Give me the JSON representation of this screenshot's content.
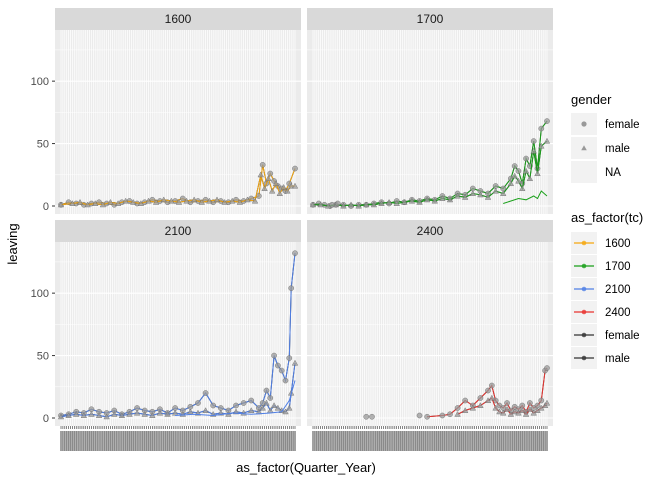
{
  "chart_data": {
    "type": "line",
    "facets": [
      "1600",
      "1700",
      "2100",
      "2400"
    ],
    "xlabel": "as_factor(Quarter_Year)",
    "ylabel": "leaving",
    "ylim": [
      0,
      140
    ],
    "yticks": [
      0,
      50,
      100
    ],
    "n_quarters": 124,
    "legend_gender": {
      "title": "gender",
      "entries": [
        {
          "label": "female",
          "shape": "circle"
        },
        {
          "label": "male",
          "shape": "triangle"
        },
        {
          "label": "NA",
          "shape": "none"
        }
      ]
    },
    "legend_tc": {
      "title": "as_factor(tc)",
      "entries": [
        {
          "label": "1600",
          "color": "#F5A70F"
        },
        {
          "label": "1700",
          "color": "#1AA01A"
        },
        {
          "label": "2100",
          "color": "#4F7FE6"
        },
        {
          "label": "2400",
          "color": "#E8332F"
        },
        {
          "label": "female",
          "color": "#333333"
        },
        {
          "label": "male",
          "color": "#333333"
        }
      ]
    },
    "series": [
      {
        "facet": "1600",
        "color": "#F5A70F",
        "gender": "female",
        "points": [
          [
            0,
            1
          ],
          [
            4,
            3
          ],
          [
            8,
            2
          ],
          [
            12,
            1
          ],
          [
            16,
            2
          ],
          [
            20,
            3
          ],
          [
            24,
            2
          ],
          [
            28,
            1
          ],
          [
            32,
            3
          ],
          [
            36,
            4
          ],
          [
            40,
            2
          ],
          [
            44,
            3
          ],
          [
            48,
            5
          ],
          [
            52,
            4
          ],
          [
            56,
            3
          ],
          [
            60,
            4
          ],
          [
            64,
            6
          ],
          [
            68,
            3
          ],
          [
            72,
            4
          ],
          [
            76,
            5
          ],
          [
            80,
            3
          ],
          [
            84,
            4
          ],
          [
            88,
            3
          ],
          [
            92,
            5
          ],
          [
            96,
            4
          ],
          [
            100,
            6
          ],
          [
            104,
            8
          ],
          [
            106,
            33
          ],
          [
            108,
            18
          ],
          [
            110,
            26
          ],
          [
            112,
            20
          ],
          [
            114,
            16
          ],
          [
            116,
            14
          ],
          [
            118,
            12
          ],
          [
            120,
            18
          ],
          [
            123,
            30
          ]
        ]
      },
      {
        "facet": "1600",
        "color": "#F5A70F",
        "gender": "male",
        "points": [
          [
            0,
            1
          ],
          [
            6,
            2
          ],
          [
            10,
            3
          ],
          [
            14,
            1
          ],
          [
            18,
            2
          ],
          [
            22,
            1
          ],
          [
            26,
            3
          ],
          [
            30,
            2
          ],
          [
            34,
            4
          ],
          [
            38,
            3
          ],
          [
            42,
            2
          ],
          [
            46,
            4
          ],
          [
            50,
            3
          ],
          [
            54,
            5
          ],
          [
            58,
            4
          ],
          [
            62,
            3
          ],
          [
            66,
            4
          ],
          [
            70,
            5
          ],
          [
            74,
            3
          ],
          [
            78,
            4
          ],
          [
            82,
            5
          ],
          [
            86,
            3
          ],
          [
            90,
            4
          ],
          [
            94,
            3
          ],
          [
            98,
            5
          ],
          [
            102,
            4
          ],
          [
            105,
            25
          ],
          [
            107,
            14
          ],
          [
            109,
            22
          ],
          [
            111,
            12
          ],
          [
            113,
            18
          ],
          [
            115,
            10
          ],
          [
            117,
            15
          ],
          [
            119,
            12
          ],
          [
            121,
            16
          ],
          [
            123,
            16
          ]
        ]
      },
      {
        "facet": "1700",
        "color": "#1AA01A",
        "gender": "female",
        "points": [
          [
            0,
            1
          ],
          [
            3,
            2
          ],
          [
            6,
            1
          ],
          [
            9,
            0
          ],
          [
            12,
            1
          ],
          [
            16,
            1
          ],
          [
            20,
            0
          ],
          [
            24,
            1
          ],
          [
            28,
            1
          ],
          [
            32,
            2
          ],
          [
            36,
            3
          ],
          [
            40,
            2
          ],
          [
            44,
            4
          ],
          [
            48,
            3
          ],
          [
            52,
            5
          ],
          [
            56,
            4
          ],
          [
            60,
            6
          ],
          [
            64,
            5
          ],
          [
            68,
            8
          ],
          [
            72,
            6
          ],
          [
            76,
            10
          ],
          [
            80,
            9
          ],
          [
            84,
            14
          ],
          [
            88,
            12
          ],
          [
            92,
            10
          ],
          [
            96,
            16
          ],
          [
            100,
            14
          ],
          [
            104,
            22
          ],
          [
            106,
            32
          ],
          [
            108,
            28
          ],
          [
            110,
            18
          ],
          [
            112,
            38
          ],
          [
            114,
            32
          ],
          [
            116,
            52
          ],
          [
            118,
            30
          ],
          [
            120,
            62
          ],
          [
            123,
            68
          ]
        ]
      },
      {
        "facet": "1700",
        "color": "#1AA01A",
        "gender": "male",
        "points": [
          [
            0,
            1
          ],
          [
            4,
            1
          ],
          [
            8,
            0
          ],
          [
            12,
            1
          ],
          [
            16,
            0
          ],
          [
            20,
            1
          ],
          [
            24,
            0
          ],
          [
            28,
            1
          ],
          [
            32,
            1
          ],
          [
            36,
            2
          ],
          [
            40,
            3
          ],
          [
            44,
            2
          ],
          [
            48,
            3
          ],
          [
            52,
            4
          ],
          [
            56,
            3
          ],
          [
            60,
            5
          ],
          [
            64,
            4
          ],
          [
            68,
            6
          ],
          [
            72,
            5
          ],
          [
            76,
            8
          ],
          [
            80,
            7
          ],
          [
            84,
            10
          ],
          [
            88,
            9
          ],
          [
            92,
            7
          ],
          [
            96,
            12
          ],
          [
            100,
            10
          ],
          [
            104,
            18
          ],
          [
            106,
            24
          ],
          [
            108,
            20
          ],
          [
            110,
            14
          ],
          [
            112,
            28
          ],
          [
            114,
            22
          ],
          [
            116,
            44
          ],
          [
            118,
            26
          ],
          [
            120,
            48
          ],
          [
            123,
            52
          ]
        ]
      },
      {
        "facet": "1700",
        "color": "#1AA01A",
        "gender": "other",
        "points": [
          [
            100,
            2
          ],
          [
            104,
            4
          ],
          [
            108,
            6
          ],
          [
            112,
            5
          ],
          [
            116,
            8
          ],
          [
            118,
            6
          ],
          [
            120,
            12
          ],
          [
            123,
            8
          ]
        ]
      },
      {
        "facet": "2100",
        "color": "#4F7FE6",
        "gender": "female",
        "points": [
          [
            0,
            2
          ],
          [
            4,
            3
          ],
          [
            8,
            5
          ],
          [
            12,
            4
          ],
          [
            16,
            7
          ],
          [
            20,
            5
          ],
          [
            24,
            4
          ],
          [
            28,
            6
          ],
          [
            32,
            3
          ],
          [
            36,
            5
          ],
          [
            40,
            8
          ],
          [
            44,
            6
          ],
          [
            48,
            5
          ],
          [
            52,
            7
          ],
          [
            56,
            4
          ],
          [
            60,
            8
          ],
          [
            64,
            6
          ],
          [
            68,
            9
          ],
          [
            72,
            12
          ],
          [
            76,
            20
          ],
          [
            80,
            10
          ],
          [
            84,
            8
          ],
          [
            88,
            6
          ],
          [
            92,
            10
          ],
          [
            96,
            12
          ],
          [
            100,
            14
          ],
          [
            104,
            8
          ],
          [
            106,
            12
          ],
          [
            108,
            22
          ],
          [
            110,
            16
          ],
          [
            112,
            50
          ],
          [
            114,
            42
          ],
          [
            116,
            38
          ],
          [
            118,
            30
          ],
          [
            120,
            48
          ],
          [
            121,
            104
          ],
          [
            123,
            132
          ]
        ]
      },
      {
        "facet": "2100",
        "color": "#4F7FE6",
        "gender": "male",
        "points": [
          [
            0,
            1
          ],
          [
            4,
            2
          ],
          [
            8,
            3
          ],
          [
            12,
            2
          ],
          [
            16,
            3
          ],
          [
            20,
            2
          ],
          [
            24,
            1
          ],
          [
            28,
            3
          ],
          [
            32,
            2
          ],
          [
            36,
            3
          ],
          [
            40,
            4
          ],
          [
            44,
            3
          ],
          [
            48,
            2
          ],
          [
            52,
            4
          ],
          [
            56,
            3
          ],
          [
            60,
            4
          ],
          [
            64,
            3
          ],
          [
            68,
            5
          ],
          [
            72,
            4
          ],
          [
            76,
            6
          ],
          [
            80,
            3
          ],
          [
            84,
            4
          ],
          [
            88,
            3
          ],
          [
            92,
            5
          ],
          [
            96,
            4
          ],
          [
            100,
            6
          ],
          [
            104,
            5
          ],
          [
            106,
            8
          ],
          [
            108,
            12
          ],
          [
            110,
            6
          ],
          [
            112,
            10
          ],
          [
            114,
            8
          ],
          [
            116,
            6
          ],
          [
            118,
            5
          ],
          [
            120,
            8
          ],
          [
            121,
            20
          ],
          [
            123,
            44
          ]
        ]
      },
      {
        "facet": "2100",
        "color": "#4F7FE6",
        "gender": "other",
        "points": [
          [
            60,
            2
          ],
          [
            70,
            3
          ],
          [
            80,
            2
          ],
          [
            90,
            4
          ],
          [
            100,
            3
          ],
          [
            110,
            4
          ],
          [
            116,
            5
          ],
          [
            120,
            14
          ],
          [
            123,
            30
          ]
        ]
      },
      {
        "facet": "2400",
        "color": "#E8332F",
        "gender": "female",
        "points": [
          [
            60,
            1
          ],
          [
            68,
            2
          ],
          [
            72,
            3
          ],
          [
            76,
            8
          ],
          [
            80,
            14
          ],
          [
            84,
            10
          ],
          [
            88,
            16
          ],
          [
            92,
            22
          ],
          [
            94,
            26
          ],
          [
            96,
            14
          ],
          [
            98,
            10
          ],
          [
            100,
            8
          ],
          [
            102,
            12
          ],
          [
            104,
            6
          ],
          [
            106,
            9
          ],
          [
            108,
            7
          ],
          [
            110,
            10
          ],
          [
            112,
            5
          ],
          [
            114,
            12
          ],
          [
            116,
            8
          ],
          [
            118,
            10
          ],
          [
            120,
            14
          ],
          [
            122,
            38
          ],
          [
            123,
            40
          ]
        ]
      },
      {
        "facet": "2400",
        "color": "#E8332F",
        "gender": "male",
        "points": [
          [
            76,
            3
          ],
          [
            80,
            6
          ],
          [
            84,
            8
          ],
          [
            88,
            10
          ],
          [
            92,
            14
          ],
          [
            94,
            16
          ],
          [
            96,
            8
          ],
          [
            98,
            5
          ],
          [
            100,
            4
          ],
          [
            102,
            7
          ],
          [
            104,
            3
          ],
          [
            106,
            5
          ],
          [
            108,
            4
          ],
          [
            110,
            6
          ],
          [
            112,
            3
          ],
          [
            114,
            7
          ],
          [
            116,
            4
          ],
          [
            118,
            6
          ],
          [
            120,
            8
          ],
          [
            122,
            10
          ],
          [
            123,
            12
          ]
        ]
      }
    ],
    "isolated_points": [
      {
        "facet": "1700",
        "x": 10,
        "y": 1
      },
      {
        "facet": "1700",
        "x": 13,
        "y": 2
      },
      {
        "facet": "2400",
        "x": 28,
        "y": 1
      },
      {
        "facet": "2400",
        "x": 31,
        "y": 1
      },
      {
        "facet": "2400",
        "x": 56,
        "y": 2
      }
    ]
  }
}
